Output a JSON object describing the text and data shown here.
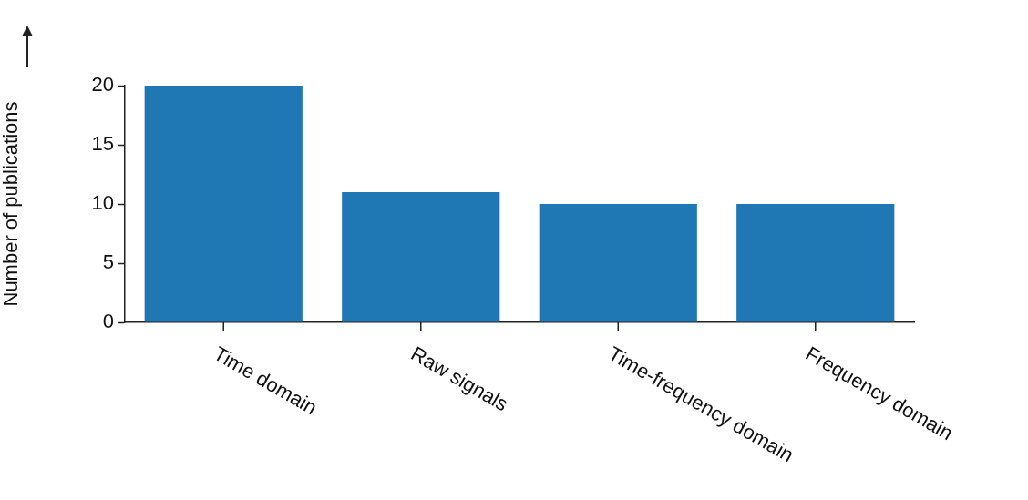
{
  "chart_data": {
    "type": "bar",
    "ylabel": "Number of publications",
    "categories": [
      "Time domain",
      "Raw signals",
      "Time-frequency domain",
      "Frequency domain"
    ],
    "values": [
      20,
      11,
      10,
      10
    ],
    "color": "#1f77b4",
    "ylim": [
      0,
      20
    ],
    "yticks": [
      0,
      5,
      10,
      15,
      20
    ],
    "grid": false,
    "legend": false
  }
}
